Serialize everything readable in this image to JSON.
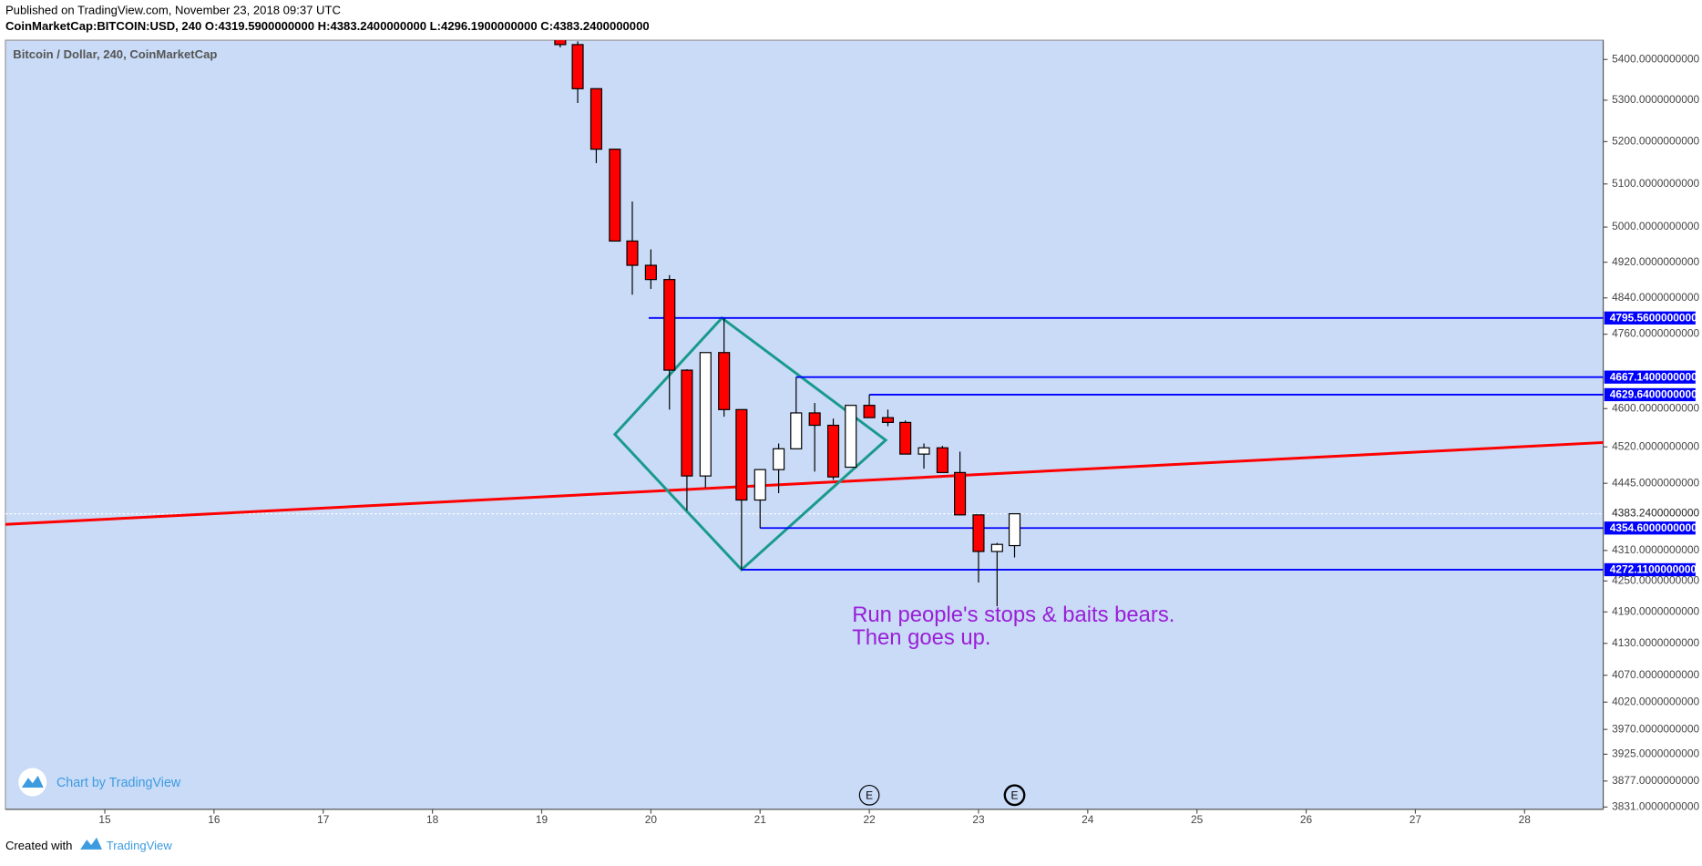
{
  "published": "Published on TradingView.com, November 23, 2018 09:37 UTC",
  "symbol_line": "CoinMarketCap:BITCOIN:USD, 240 O:4319.5900000000 H:4383.2400000000 L:4296.1900000000 C:4383.2400000000",
  "footer_created": "Created with",
  "footer_brand": "TradingView",
  "chart_data": {
    "type": "candlestick",
    "title": "Bitcoin / Dollar, 240, CoinMarketCap",
    "watermark": "Chart by TradingView",
    "annotation": [
      "Run people's stops & baits bears.",
      "Then goes up."
    ],
    "log_scale": true,
    "background": "#c9dbf7",
    "up_color": "#ffffff",
    "down_color": "#ff0000",
    "x": [
      19.17,
      19.33,
      19.5,
      19.67,
      19.83,
      20.0,
      20.17,
      20.33,
      20.5,
      20.67,
      20.83,
      21.0,
      21.17,
      21.33,
      21.5,
      21.67,
      21.83,
      22.0,
      22.17,
      22.33,
      22.5,
      22.67,
      22.83,
      23.0,
      23.17,
      23.33
    ],
    "open": [
      5455,
      5437,
      5328,
      5182,
      4968,
      4913,
      4881,
      4682,
      4460,
      4720,
      4598,
      4411,
      4473,
      4516,
      4591,
      4565,
      4478,
      4607,
      4581,
      4571,
      4505,
      4518,
      4467,
      4381,
      4308,
      4319.59
    ],
    "high": [
      5470,
      5445,
      5328,
      5182,
      5059,
      4949,
      4891,
      4684,
      4720,
      4795.56,
      4598,
      4473,
      4527,
      4667.14,
      4612,
      4579,
      4607,
      4629.64,
      4598,
      4575,
      4527,
      4522,
      4510,
      4381,
      4325,
      4383.24
    ],
    "high_unused": null,
    "low": [
      5430,
      5293,
      5149,
      4968,
      4847,
      4860,
      4598,
      4390,
      4436,
      4583,
      4272.11,
      4354.6,
      4425,
      4516,
      4469,
      4452,
      4478,
      4581,
      4563,
      4505,
      4475,
      4467,
      4380,
      4247,
      4201,
      4296.19
    ],
    "close": [
      5437,
      5328,
      5182,
      4968,
      4913,
      4881,
      4682,
      4460,
      4720,
      4598,
      4411,
      4473,
      4516,
      4591,
      4565,
      4458,
      4607,
      4581,
      4571,
      4505,
      4518,
      4467,
      4381,
      4308,
      4322,
      4383.24
    ],
    "xlim": [
      14.09,
      28.72
    ],
    "ylim": [
      3827,
      5448
    ],
    "xticks": [
      15,
      16,
      17,
      18,
      19,
      20,
      21,
      22,
      23,
      24,
      25,
      26,
      27,
      28
    ],
    "yticks": [
      {
        "value": 5400,
        "label": "5400.0000000000"
      },
      {
        "value": 5300,
        "label": "5300.0000000000"
      },
      {
        "value": 5200,
        "label": "5200.0000000000"
      },
      {
        "value": 5100,
        "label": "5100.0000000000"
      },
      {
        "value": 5000,
        "label": "5000.0000000000"
      },
      {
        "value": 4920,
        "label": "4920.0000000000"
      },
      {
        "value": 4840,
        "label": "4840.0000000000"
      },
      {
        "value": 4760,
        "label": "4760.0000000000"
      },
      {
        "value": 4600,
        "label": "4600.0000000000"
      },
      {
        "value": 4520,
        "label": "4520.0000000000"
      },
      {
        "value": 4445,
        "label": "4445.0000000000"
      },
      {
        "value": 4310,
        "label": "4310.0000000000"
      },
      {
        "value": 4250,
        "label": "4250.0000000000"
      },
      {
        "value": 4190,
        "label": "4190.0000000000"
      },
      {
        "value": 4130,
        "label": "4130.0000000000"
      },
      {
        "value": 4070,
        "label": "4070.0000000000"
      },
      {
        "value": 4020,
        "label": "4020.0000000000"
      },
      {
        "value": 3970,
        "label": "3970.0000000000"
      },
      {
        "value": 3925,
        "label": "3925.0000000000"
      },
      {
        "value": 3877,
        "label": "3877.0000000000"
      },
      {
        "value": 3831,
        "label": "3831.0000000000"
      }
    ],
    "last_price": {
      "value": 4383.24,
      "label": "4383.2400000000"
    },
    "level_color": "#0000ff",
    "levels": [
      {
        "value": 4795.56,
        "label": "4795.5600000000",
        "from": 19.98
      },
      {
        "value": 4667.14,
        "label": "4667.1400000000",
        "from": 21.33
      },
      {
        "value": 4629.64,
        "label": "4629.6400000000",
        "from": 22.0
      },
      {
        "value": 4354.6,
        "label": "4354.6000000000",
        "from": 21.0
      },
      {
        "value": 4272.11,
        "label": "4272.1100000000",
        "from": 20.83
      }
    ],
    "trend_line": {
      "color": "#ff0000",
      "x": [
        14.09,
        28.72
      ],
      "y": [
        4362,
        4529
      ]
    },
    "diamond": {
      "color": "#1a9a8c",
      "x": [
        19.67,
        20.65,
        22.15,
        20.83
      ],
      "y": [
        4546,
        4795.56,
        4534,
        4272.11
      ]
    },
    "events": [
      {
        "x": 22.0,
        "label": "E"
      },
      {
        "x": 23.33,
        "label": "E"
      }
    ]
  }
}
